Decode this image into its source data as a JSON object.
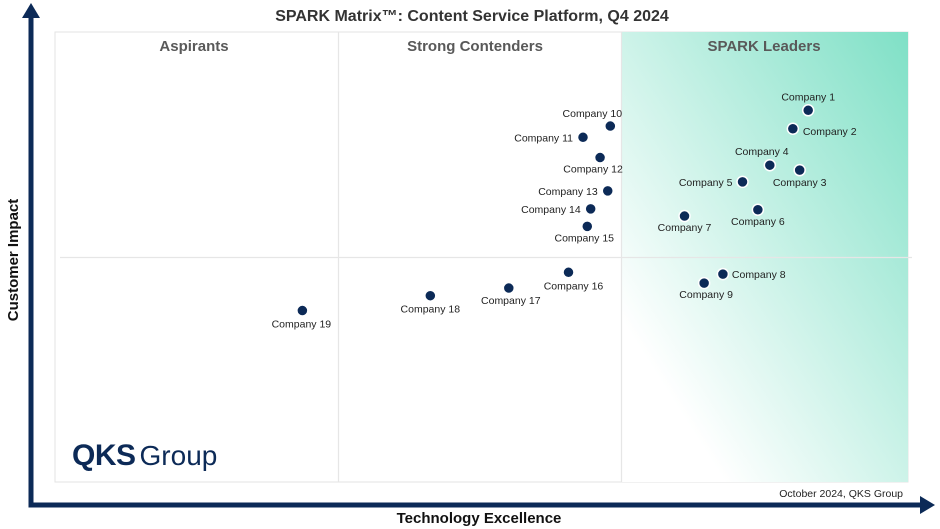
{
  "chart_data": {
    "type": "scatter",
    "title": "SPARK Matrix™: Content Service Platform, Q4 2024",
    "xlabel": "Technology Excellence",
    "ylabel": "Customer Impact",
    "quadrants": [
      "Aspirants",
      "Strong Contenders",
      "SPARK Leaders"
    ],
    "points": [
      {
        "name": "Company 1",
        "x": 88.3,
        "y": 82.6
      },
      {
        "name": "Company 2",
        "x": 86.5,
        "y": 78.5
      },
      {
        "name": "Company 3",
        "x": 87.3,
        "y": 69.3
      },
      {
        "name": "Company 4",
        "x": 83.8,
        "y": 70.4
      },
      {
        "name": "Company 5",
        "x": 80.6,
        "y": 66.7
      },
      {
        "name": "Company 6",
        "x": 82.4,
        "y": 60.5
      },
      {
        "name": "Company 7",
        "x": 73.8,
        "y": 59.1
      },
      {
        "name": "Company 8",
        "x": 78.3,
        "y": 46.2
      },
      {
        "name": "Company 9",
        "x": 76.1,
        "y": 44.2
      },
      {
        "name": "Company 10",
        "x": 65.1,
        "y": 79.1
      },
      {
        "name": "Company 11",
        "x": 61.9,
        "y": 76.6
      },
      {
        "name": "Company 12",
        "x": 63.9,
        "y": 72.1
      },
      {
        "name": "Company 13",
        "x": 64.8,
        "y": 64.7
      },
      {
        "name": "Company 14",
        "x": 62.8,
        "y": 60.7
      },
      {
        "name": "Company 15",
        "x": 62.4,
        "y": 56.8
      },
      {
        "name": "Company 16",
        "x": 60.2,
        "y": 46.6
      },
      {
        "name": "Company 17",
        "x": 53.2,
        "y": 43.1
      },
      {
        "name": "Company 18",
        "x": 44.0,
        "y": 41.4
      },
      {
        "name": "Company 19",
        "x": 29.0,
        "y": 38.1
      }
    ],
    "xlim": [
      0,
      100
    ],
    "ylim": [
      0,
      100
    ],
    "grid": false
  },
  "footnote": "October 2024, QKS Group",
  "logo": {
    "bold": "QKS",
    "light": "Group"
  },
  "colors": {
    "axis": "#0c2a57",
    "marker": "#0c2a57",
    "leaders_fill": "#7fe0c6",
    "divider": "#e6e6e6"
  }
}
